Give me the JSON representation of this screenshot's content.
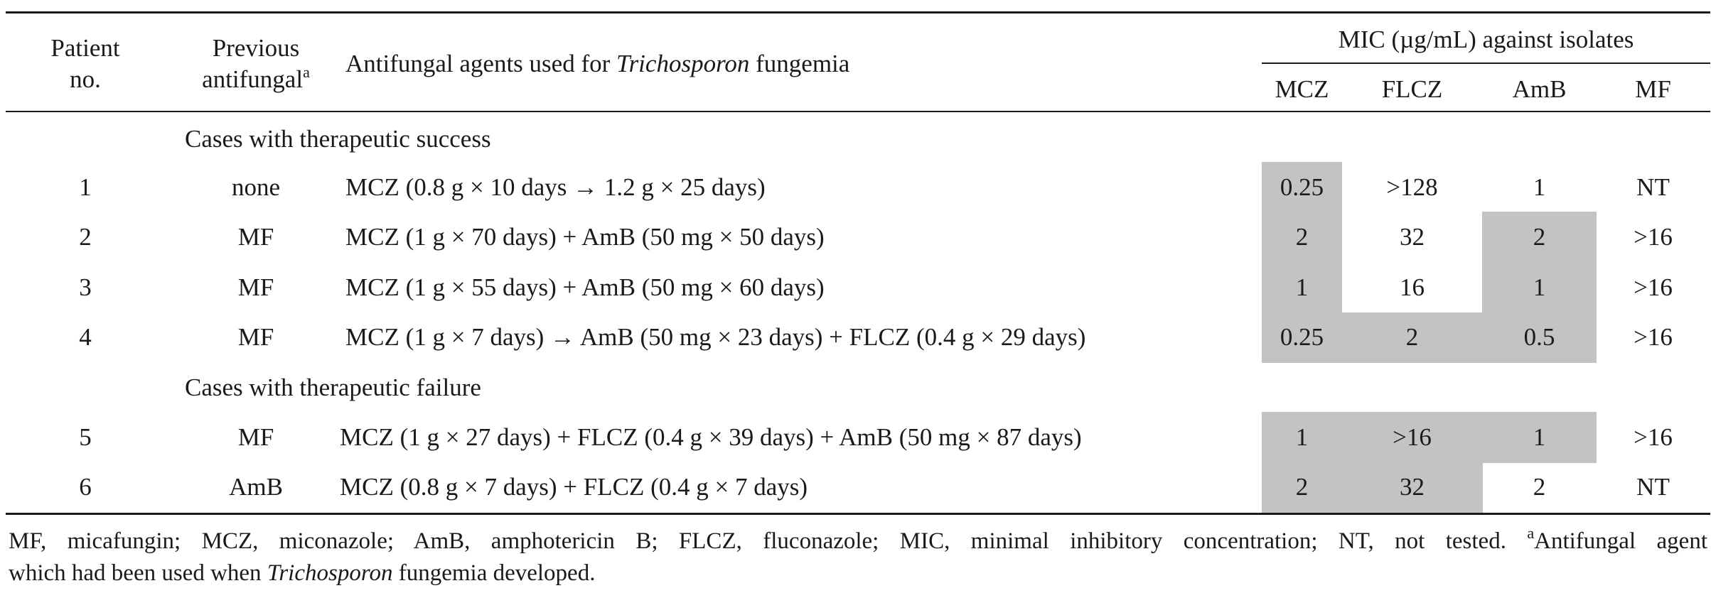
{
  "header": {
    "patient_no_line1": "Patient",
    "patient_no_line2": "no.",
    "previous_line1": "Previous",
    "previous_line2": "antifungal",
    "previous_sup": "a",
    "agents_prefix": "Antifungal agents used for ",
    "agents_italic": "Trichosporon",
    "agents_suffix": " fungemia",
    "mic_group": "MIC (µg/mL) against isolates",
    "mic_columns": [
      "MCZ",
      "FLCZ",
      "AmB",
      "MF"
    ]
  },
  "sections": [
    "Cases with therapeutic success",
    "Cases with therapeutic failure"
  ],
  "rows": [
    {
      "no": "1",
      "prev": "none",
      "agents": "MCZ (0.8 g × 10 days → 1.2 g × 25 days)",
      "mic": [
        "0.25",
        ">128",
        "1",
        "NT"
      ]
    },
    {
      "no": "2",
      "prev": "MF",
      "agents": "MCZ (1 g × 70 days) + AmB (50 mg × 50 days)",
      "mic": [
        "2",
        "32",
        "2",
        ">16"
      ]
    },
    {
      "no": "3",
      "prev": "MF",
      "agents": "MCZ (1 g × 55 days) + AmB (50 mg × 60 days)",
      "mic": [
        "1",
        "16",
        "1",
        ">16"
      ]
    },
    {
      "no": "4",
      "prev": "MF",
      "agents": "MCZ (1 g × 7 days) → AmB (50 mg × 23 days) + FLCZ (0.4 g × 29 days)",
      "mic": [
        "0.25",
        "2",
        "0.5",
        ">16"
      ]
    },
    {
      "no": "5",
      "prev": "MF",
      "agents": "MCZ (1 g × 27 days) + FLCZ (0.4 g × 39 days) + AmB (50 mg × 87 days)",
      "mic": [
        "1",
        ">16",
        "1",
        ">16"
      ]
    },
    {
      "no": "6",
      "prev": "AmB",
      "agents": "MCZ (0.8 g × 7 days) + FLCZ (0.4 g × 7 days)",
      "mic": [
        "2",
        "32",
        "2",
        "NT"
      ]
    }
  ],
  "footnote": {
    "line1_text": "MF, micafungin; MCZ, miconazole; AmB, amphotericin B; FLCZ, fluconazole; MIC, minimal inhibitory concentration; NT, not tested. ",
    "line1_sup": "a",
    "line1_tail": "Antifungal agent",
    "line2_prefix": "which had been used when ",
    "line2_italic": "Trichosporon",
    "line2_suffix": " fungemia developed."
  },
  "colors": {
    "shading": "#c3c3c3",
    "text": "#1a1a1a"
  }
}
